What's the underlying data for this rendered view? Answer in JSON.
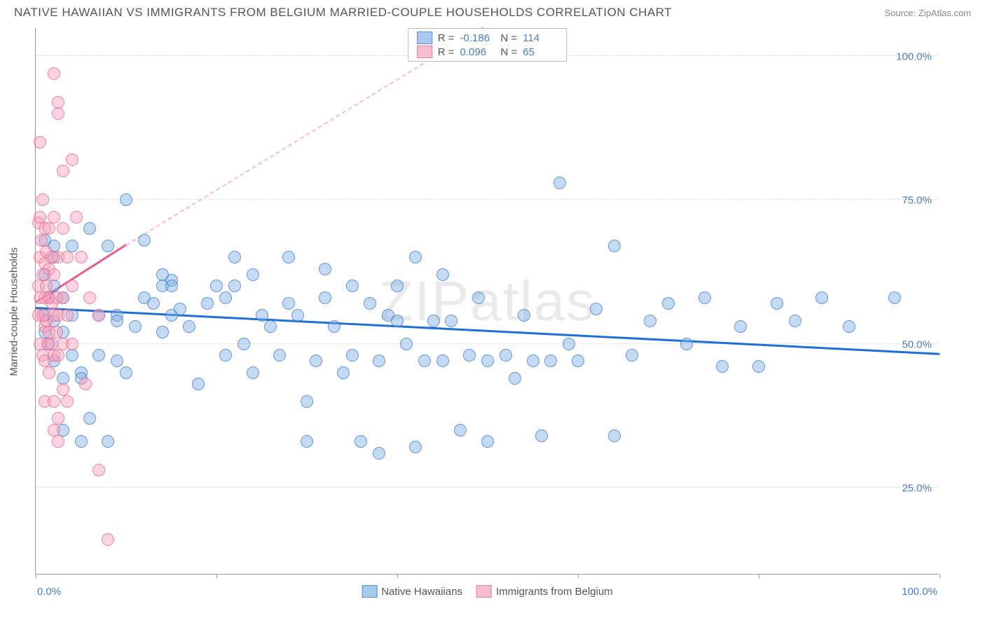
{
  "title": "NATIVE HAWAIIAN VS IMMIGRANTS FROM BELGIUM MARRIED-COUPLE HOUSEHOLDS CORRELATION CHART",
  "source": "Source: ZipAtlas.com",
  "watermark": "ZIPatlas",
  "chart": {
    "type": "scatter",
    "ylabel": "Married-couple Households",
    "xlim": [
      0,
      100
    ],
    "ylim": [
      10,
      105
    ],
    "x_ticks": [
      0,
      20,
      40,
      60,
      80,
      100
    ],
    "x_tick_labels": {
      "0": "0.0%",
      "100": "100.0%"
    },
    "y_gridlines": [
      25,
      50,
      75,
      100
    ],
    "y_tick_labels": {
      "25": "25.0%",
      "50": "50.0%",
      "75": "75.0%",
      "100": "100.0%"
    },
    "background_color": "#ffffff",
    "grid_color": "#dddddd",
    "axis_color": "#999999",
    "tick_label_color": "#4a7ebb",
    "marker_radius": 9,
    "series": [
      {
        "name": "Native Hawaiians",
        "color_fill": "rgba(127,175,228,0.45)",
        "color_stroke": "rgba(60,120,200,0.7)",
        "swatch_fill": "#a8c9ed",
        "swatch_border": "#5a8fc9",
        "R": "-0.186",
        "N": "114",
        "trend": {
          "x1": 0,
          "y1": 56,
          "x2": 100,
          "y2": 48,
          "color": "#1f6fd4",
          "width": 3,
          "dash": false,
          "ext_x2": 100,
          "ext_y2": 48
        },
        "points": [
          [
            1,
            68
          ],
          [
            1,
            62
          ],
          [
            1,
            55
          ],
          [
            1,
            52
          ],
          [
            1.5,
            58
          ],
          [
            1.5,
            50
          ],
          [
            2,
            65
          ],
          [
            2,
            60
          ],
          [
            2,
            54
          ],
          [
            2,
            47
          ],
          [
            2,
            67
          ],
          [
            3,
            58
          ],
          [
            3,
            52
          ],
          [
            3,
            44
          ],
          [
            3,
            35
          ],
          [
            4,
            55
          ],
          [
            4,
            48
          ],
          [
            4,
            67
          ],
          [
            5,
            45
          ],
          [
            5,
            44
          ],
          [
            5,
            33
          ],
          [
            6,
            70
          ],
          [
            6,
            37
          ],
          [
            7,
            55
          ],
          [
            7,
            48
          ],
          [
            8,
            67
          ],
          [
            8,
            33
          ],
          [
            9,
            55
          ],
          [
            9,
            54
          ],
          [
            9,
            47
          ],
          [
            10,
            45
          ],
          [
            10,
            75
          ],
          [
            11,
            53
          ],
          [
            12,
            58
          ],
          [
            12,
            68
          ],
          [
            13,
            57
          ],
          [
            14,
            62
          ],
          [
            14,
            60
          ],
          [
            14,
            52
          ],
          [
            15,
            61
          ],
          [
            15,
            60
          ],
          [
            15,
            55
          ],
          [
            16,
            56
          ],
          [
            17,
            53
          ],
          [
            18,
            43
          ],
          [
            19,
            57
          ],
          [
            20,
            60
          ],
          [
            21,
            58
          ],
          [
            21,
            48
          ],
          [
            22,
            60
          ],
          [
            22,
            65
          ],
          [
            23,
            50
          ],
          [
            24,
            45
          ],
          [
            24,
            62
          ],
          [
            25,
            55
          ],
          [
            26,
            53
          ],
          [
            27,
            48
          ],
          [
            28,
            57
          ],
          [
            28,
            65
          ],
          [
            29,
            55
          ],
          [
            30,
            40
          ],
          [
            30,
            33
          ],
          [
            31,
            47
          ],
          [
            32,
            58
          ],
          [
            32,
            63
          ],
          [
            33,
            53
          ],
          [
            34,
            45
          ],
          [
            35,
            60
          ],
          [
            35,
            48
          ],
          [
            36,
            33
          ],
          [
            37,
            57
          ],
          [
            38,
            47
          ],
          [
            38,
            31
          ],
          [
            39,
            55
          ],
          [
            40,
            54
          ],
          [
            40,
            60
          ],
          [
            41,
            50
          ],
          [
            42,
            65
          ],
          [
            42,
            32
          ],
          [
            43,
            47
          ],
          [
            44,
            54
          ],
          [
            45,
            62
          ],
          [
            45,
            47
          ],
          [
            46,
            54
          ],
          [
            47,
            35
          ],
          [
            48,
            48
          ],
          [
            49,
            58
          ],
          [
            50,
            47
          ],
          [
            50,
            33
          ],
          [
            52,
            48
          ],
          [
            53,
            44
          ],
          [
            54,
            55
          ],
          [
            55,
            47
          ],
          [
            56,
            34
          ],
          [
            57,
            47
          ],
          [
            58,
            78
          ],
          [
            59,
            50
          ],
          [
            60,
            47
          ],
          [
            62,
            56
          ],
          [
            64,
            67
          ],
          [
            64,
            34
          ],
          [
            66,
            48
          ],
          [
            68,
            54
          ],
          [
            70,
            57
          ],
          [
            72,
            50
          ],
          [
            74,
            58
          ],
          [
            76,
            46
          ],
          [
            78,
            53
          ],
          [
            80,
            46
          ],
          [
            82,
            57
          ],
          [
            84,
            54
          ],
          [
            87,
            58
          ],
          [
            90,
            53
          ],
          [
            95,
            58
          ]
        ]
      },
      {
        "name": "Immigrants from Belgium",
        "color_fill": "rgba(248,157,185,0.45)",
        "color_stroke": "rgba(230,100,140,0.7)",
        "swatch_fill": "#f6bcd0",
        "swatch_border": "#e87fa5",
        "R": "0.096",
        "N": "65",
        "trend": {
          "x1": 0,
          "y1": 57,
          "x2": 10,
          "y2": 67,
          "color": "#e85a8f",
          "width": 3,
          "dash": false,
          "ext_x2": 60,
          "ext_y2": 115
        },
        "points": [
          [
            0.3,
            71
          ],
          [
            0.3,
            60
          ],
          [
            0.3,
            55
          ],
          [
            0.5,
            85
          ],
          [
            0.5,
            72
          ],
          [
            0.5,
            65
          ],
          [
            0.5,
            58
          ],
          [
            0.5,
            50
          ],
          [
            0.6,
            68
          ],
          [
            0.8,
            75
          ],
          [
            0.8,
            62
          ],
          [
            0.8,
            55
          ],
          [
            0.8,
            48
          ],
          [
            1,
            70
          ],
          [
            1,
            64
          ],
          [
            1,
            58
          ],
          [
            1,
            53
          ],
          [
            1,
            47
          ],
          [
            1,
            40
          ],
          [
            1.2,
            66
          ],
          [
            1.2,
            60
          ],
          [
            1.2,
            54
          ],
          [
            1.3,
            50
          ],
          [
            1.5,
            70
          ],
          [
            1.5,
            63
          ],
          [
            1.5,
            58
          ],
          [
            1.5,
            52
          ],
          [
            1.5,
            45
          ],
          [
            1.8,
            65
          ],
          [
            1.8,
            57
          ],
          [
            1.8,
            50
          ],
          [
            2,
            97
          ],
          [
            2,
            72
          ],
          [
            2,
            62
          ],
          [
            2,
            55
          ],
          [
            2,
            48
          ],
          [
            2,
            40
          ],
          [
            2,
            35
          ],
          [
            2.3,
            58
          ],
          [
            2.3,
            52
          ],
          [
            2.5,
            92
          ],
          [
            2.5,
            90
          ],
          [
            2.5,
            65
          ],
          [
            2.5,
            55
          ],
          [
            2.5,
            48
          ],
          [
            2.5,
            37
          ],
          [
            2.5,
            33
          ],
          [
            3,
            80
          ],
          [
            3,
            70
          ],
          [
            3,
            58
          ],
          [
            3,
            50
          ],
          [
            3,
            42
          ],
          [
            3.5,
            65
          ],
          [
            3.5,
            55
          ],
          [
            3.5,
            40
          ],
          [
            4,
            82
          ],
          [
            4,
            60
          ],
          [
            4,
            50
          ],
          [
            4.5,
            72
          ],
          [
            5,
            65
          ],
          [
            5.5,
            43
          ],
          [
            6,
            58
          ],
          [
            7,
            55
          ],
          [
            7,
            28
          ],
          [
            8,
            16
          ]
        ]
      }
    ],
    "legend_top_labels": {
      "R": "R =",
      "N": "N ="
    },
    "legend_bottom": [
      {
        "label": "Native Hawaiians",
        "series": 0
      },
      {
        "label": "Immigrants from Belgium",
        "series": 1
      }
    ]
  }
}
